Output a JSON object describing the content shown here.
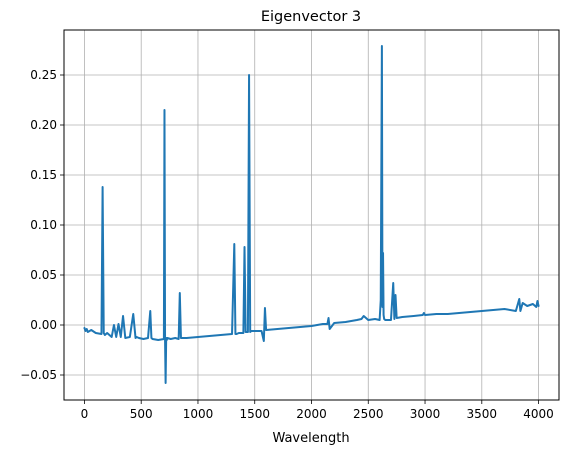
{
  "chart_data": {
    "type": "line",
    "title": "Eigenvector 3",
    "xlabel": "Wavelength",
    "ylabel": "",
    "xlim": [
      -180,
      4180
    ],
    "ylim": [
      -0.075,
      0.295
    ],
    "xticks": [
      0,
      500,
      1000,
      1500,
      2000,
      2500,
      3000,
      3500,
      4000
    ],
    "xtick_labels": [
      "0",
      "500",
      "1000",
      "1500",
      "2000",
      "2500",
      "3000",
      "3500",
      "4000"
    ],
    "yticks": [
      -0.05,
      0.0,
      0.05,
      0.1,
      0.15,
      0.2,
      0.25
    ],
    "ytick_labels": [
      "−0.05",
      "0.00",
      "0.05",
      "0.10",
      "0.15",
      "0.20",
      "0.25"
    ],
    "grid": true,
    "series": [
      {
        "name": "Eigenvector 3",
        "color": "#1f77b4",
        "x": [
          0,
          10,
          20,
          30,
          60,
          100,
          150,
          160,
          170,
          180,
          200,
          240,
          260,
          280,
          300,
          320,
          340,
          360,
          400,
          430,
          450,
          460,
          480,
          520,
          560,
          580,
          590,
          600,
          650,
          700,
          705,
          710,
          715,
          720,
          725,
          730,
          760,
          800,
          830,
          840,
          850,
          900,
          1000,
          1100,
          1200,
          1300,
          1320,
          1330,
          1340,
          1360,
          1400,
          1410,
          1420,
          1440,
          1450,
          1460,
          1470,
          1500,
          1560,
          1580,
          1590,
          1600,
          1700,
          1800,
          1900,
          2000,
          2100,
          2140,
          2150,
          2160,
          2200,
          2300,
          2400,
          2440,
          2460,
          2500,
          2560,
          2600,
          2610,
          2620,
          2625,
          2630,
          2635,
          2640,
          2650,
          2700,
          2720,
          2730,
          2740,
          2750,
          2800,
          2900,
          2980,
          2990,
          3000,
          3100,
          3200,
          3300,
          3400,
          3500,
          3600,
          3700,
          3800,
          3830,
          3840,
          3860,
          3900,
          3950,
          3980,
          3990,
          4000
        ],
        "y": [
          -0.003,
          -0.006,
          -0.004,
          -0.007,
          -0.005,
          -0.008,
          -0.009,
          0.138,
          -0.008,
          -0.01,
          -0.008,
          -0.012,
          0.0,
          -0.012,
          0.001,
          -0.012,
          0.009,
          -0.013,
          -0.012,
          0.011,
          -0.013,
          -0.012,
          -0.013,
          -0.014,
          -0.013,
          0.014,
          -0.013,
          -0.014,
          -0.015,
          -0.014,
          0.215,
          -0.013,
          -0.058,
          -0.013,
          -0.015,
          -0.013,
          -0.014,
          -0.013,
          -0.014,
          0.032,
          -0.013,
          -0.013,
          -0.012,
          -0.011,
          -0.01,
          -0.009,
          0.081,
          -0.009,
          -0.009,
          -0.008,
          -0.008,
          0.078,
          -0.007,
          -0.007,
          0.25,
          -0.007,
          -0.006,
          -0.006,
          -0.006,
          -0.016,
          0.017,
          -0.005,
          -0.004,
          -0.003,
          -0.002,
          -0.001,
          0.001,
          0.001,
          0.007,
          -0.004,
          0.002,
          0.003,
          0.005,
          0.006,
          0.009,
          0.005,
          0.006,
          0.005,
          0.025,
          0.279,
          0.018,
          0.072,
          0.01,
          0.006,
          0.005,
          0.005,
          0.042,
          0.006,
          0.03,
          0.007,
          0.008,
          0.009,
          0.01,
          0.012,
          0.01,
          0.011,
          0.011,
          0.012,
          0.013,
          0.014,
          0.015,
          0.016,
          0.014,
          0.026,
          0.014,
          0.022,
          0.019,
          0.021,
          0.018,
          0.024,
          0.019
        ]
      }
    ]
  }
}
